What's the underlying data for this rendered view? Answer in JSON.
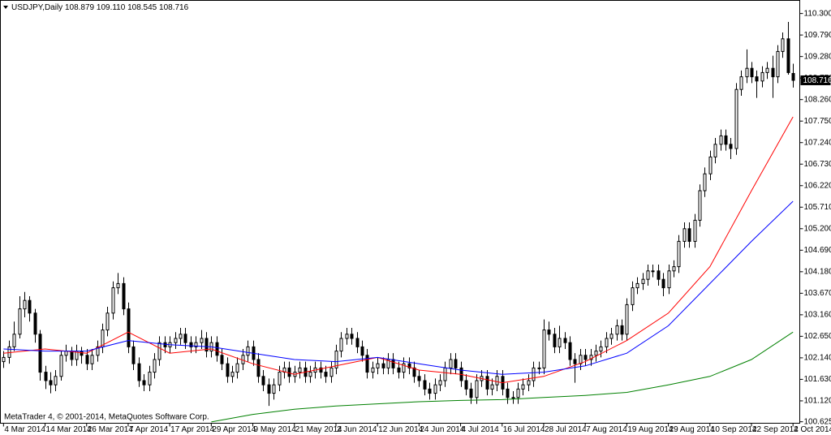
{
  "chart_data": {
    "type": "candlestick",
    "symbol": "USDJPY,Daily",
    "last_bar_labels": {
      "open": "108.879",
      "high": "109.110",
      "low": "108.545",
      "close": "108.716"
    },
    "footer": "MetaTrader 4, © 2001-2014, MetaQuotes Software Corp.",
    "up_color": "#ffffff",
    "down_color": "#000000",
    "xlim": [
      -0.6,
      153.3
    ],
    "xticks": [
      {
        "value": 0,
        "label": "4 Mar 2014"
      },
      {
        "value": 8,
        "label": "14 Mar 2014"
      },
      {
        "value": 16,
        "label": "26 Mar 2014"
      },
      {
        "value": 24,
        "label": "7 Apr 2014"
      },
      {
        "value": 32,
        "label": "17 Apr 2014"
      },
      {
        "value": 40,
        "label": "29 Apr 2014"
      },
      {
        "value": 48,
        "label": "9 May 2014"
      },
      {
        "value": 56,
        "label": "21 May 2014"
      },
      {
        "value": 64,
        "label": "2 Jun 2014"
      },
      {
        "value": 72,
        "label": "12 Jun 2014"
      },
      {
        "value": 80,
        "label": "24 Jun 2014"
      },
      {
        "value": 88,
        "label": "4 Jul 2014"
      },
      {
        "value": 96,
        "label": "16 Jul 2014"
      },
      {
        "value": 104,
        "label": "28 Jul 2014"
      },
      {
        "value": 112,
        "label": "7 Aug 2014"
      },
      {
        "value": 120,
        "label": "19 Aug 2014"
      },
      {
        "value": 128,
        "label": "29 Aug 2014"
      },
      {
        "value": 136,
        "label": "10 Sep 2014"
      },
      {
        "value": 144,
        "label": "22 Sep 2014"
      },
      {
        "value": 152,
        "label": "2 Oct 2014"
      }
    ],
    "ylim": [
      100.59,
      110.61
    ],
    "yticks": [
      {
        "value": 110.3,
        "label": "110.300"
      },
      {
        "value": 109.79,
        "label": "109.790"
      },
      {
        "value": 109.28,
        "label": "109.280"
      },
      {
        "value": 108.77,
        "label": "108.770"
      },
      {
        "value": 108.26,
        "label": "108.260"
      },
      {
        "value": 107.75,
        "label": "107.750"
      },
      {
        "value": 107.24,
        "label": "107.240"
      },
      {
        "value": 106.73,
        "label": "106.730"
      },
      {
        "value": 106.22,
        "label": "106.220"
      },
      {
        "value": 105.71,
        "label": "105.710"
      },
      {
        "value": 105.2,
        "label": "105.200"
      },
      {
        "value": 104.69,
        "label": "104.690"
      },
      {
        "value": 104.18,
        "label": "104.180"
      },
      {
        "value": 103.67,
        "label": "103.670"
      },
      {
        "value": 103.16,
        "label": "103.160"
      },
      {
        "value": 102.65,
        "label": "102.650"
      },
      {
        "value": 102.14,
        "label": "102.140"
      },
      {
        "value": 101.63,
        "label": "101.630"
      },
      {
        "value": 101.12,
        "label": "101.120"
      },
      {
        "value": 100.625,
        "label": "100.625"
      }
    ],
    "open": [
      102.05,
      102.15,
      102.4,
      102.7,
      103.3,
      103.5,
      103.2,
      102.7,
      101.8,
      101.6,
      101.5,
      101.7,
      102.2,
      102.3,
      102.1,
      102.3,
      102.2,
      102.0,
      102.2,
      102.4,
      102.8,
      103.2,
      103.8,
      103.9,
      103.3,
      102.4,
      102.0,
      101.6,
      101.5,
      101.8,
      102.1,
      102.5,
      102.4,
      102.5,
      102.6,
      102.7,
      102.5,
      102.4,
      102.5,
      102.6,
      102.3,
      102.5,
      102.2,
      102.0,
      101.7,
      101.8,
      102.0,
      102.2,
      102.4,
      102.1,
      101.7,
      101.5,
      101.3,
      101.5,
      101.8,
      101.9,
      101.7,
      101.8,
      101.9,
      101.7,
      101.8,
      101.9,
      101.8,
      101.7,
      101.9,
      102.3,
      102.6,
      102.7,
      102.6,
      102.4,
      102.2,
      101.8,
      101.9,
      102.0,
      101.9,
      102.1,
      101.9,
      101.8,
      102.0,
      101.9,
      101.7,
      101.6,
      101.4,
      101.3,
      101.5,
      101.6,
      101.9,
      102.1,
      101.9,
      101.6,
      101.4,
      101.2,
      101.6,
      101.7,
      101.4,
      101.5,
      101.7,
      101.4,
      101.2,
      101.2,
      101.4,
      101.5,
      101.6,
      101.9,
      101.9,
      102.8,
      102.7,
      102.4,
      102.6,
      102.5,
      102.1,
      102.0,
      102.2,
      102.1,
      102.2,
      102.3,
      102.4,
      102.6,
      102.7,
      102.9,
      102.7,
      103.4,
      103.8,
      103.9,
      104.0,
      104.2,
      104.2,
      104.0,
      103.8,
      104.2,
      104.3,
      104.9,
      105.2,
      104.9,
      105.4,
      106.1,
      106.5,
      106.9,
      107.2,
      107.4,
      107.2,
      107.1,
      108.5,
      108.8,
      109.0,
      108.8,
      108.7,
      108.9,
      109.0,
      108.8,
      109.4,
      109.7,
      108.879
    ],
    "high": [
      102.3,
      102.55,
      103.0,
      103.6,
      103.7,
      103.6,
      103.3,
      102.8,
      101.95,
      101.8,
      101.85,
      102.3,
      102.45,
      102.4,
      102.45,
      102.4,
      102.35,
      102.35,
      102.55,
      102.95,
      103.35,
      103.95,
      104.15,
      104.05,
      103.45,
      102.55,
      102.15,
      101.75,
      101.95,
      102.25,
      102.65,
      102.65,
      102.65,
      102.75,
      102.85,
      102.85,
      102.65,
      102.65,
      102.8,
      102.75,
      102.65,
      102.65,
      102.35,
      102.15,
      101.95,
      102.15,
      102.35,
      102.55,
      102.55,
      102.25,
      101.85,
      101.65,
      101.65,
      101.95,
      102.05,
      102.05,
      101.95,
      102.05,
      102.05,
      101.95,
      102.05,
      102.05,
      101.95,
      102.05,
      102.45,
      102.75,
      102.85,
      102.85,
      102.75,
      102.55,
      102.35,
      102.05,
      102.15,
      102.15,
      102.25,
      102.25,
      102.05,
      102.15,
      102.15,
      102.05,
      101.85,
      101.75,
      101.55,
      101.65,
      101.75,
      102.05,
      102.25,
      102.25,
      102.05,
      101.75,
      101.55,
      101.75,
      101.85,
      101.85,
      101.65,
      101.85,
      101.85,
      101.55,
      101.35,
      101.55,
      101.65,
      101.75,
      102.05,
      102.05,
      103.05,
      103.0,
      102.85,
      102.9,
      102.75,
      102.65,
      102.25,
      102.35,
      102.35,
      102.35,
      102.45,
      102.55,
      102.75,
      102.85,
      103.05,
      103.05,
      103.55,
      103.95,
      104.05,
      104.15,
      104.35,
      104.35,
      104.35,
      104.15,
      104.35,
      104.45,
      105.05,
      105.35,
      105.35,
      105.55,
      106.25,
      106.65,
      107.05,
      107.35,
      107.55,
      107.55,
      107.35,
      108.65,
      108.95,
      109.45,
      109.15,
      108.95,
      109.05,
      109.15,
      109.3,
      109.55,
      109.85,
      110.1,
      109.11
    ],
    "low": [
      101.9,
      102.0,
      102.3,
      102.6,
      103.1,
      103.0,
      102.5,
      101.6,
      101.4,
      101.3,
      101.35,
      101.6,
      102.05,
      101.95,
      101.95,
      102.0,
      101.85,
      101.85,
      102.05,
      102.25,
      102.65,
      103.05,
      103.65,
      103.15,
      102.25,
      101.85,
      101.45,
      101.35,
      101.35,
      101.65,
      101.95,
      102.25,
      102.25,
      102.35,
      102.45,
      102.35,
      102.25,
      102.25,
      102.35,
      102.15,
      102.15,
      102.05,
      101.85,
      101.55,
      101.55,
      101.65,
      101.85,
      102.05,
      101.95,
      101.55,
      101.35,
      101.0,
      101.15,
      101.35,
      101.65,
      101.55,
      101.55,
      101.65,
      101.55,
      101.55,
      101.65,
      101.65,
      101.55,
      101.55,
      101.75,
      102.15,
      102.45,
      102.45,
      102.25,
      102.05,
      101.65,
      101.65,
      101.75,
      101.75,
      101.75,
      101.75,
      101.65,
      101.65,
      101.75,
      101.55,
      101.45,
      101.25,
      101.15,
      101.15,
      101.35,
      101.45,
      101.75,
      101.75,
      101.45,
      101.25,
      101.05,
      101.05,
      101.45,
      101.25,
      101.25,
      101.35,
      101.25,
      101.05,
      101.05,
      101.05,
      101.25,
      101.35,
      101.45,
      101.75,
      101.75,
      102.55,
      102.25,
      102.25,
      102.35,
      101.95,
      101.55,
      101.85,
      101.95,
      101.95,
      102.05,
      102.15,
      102.25,
      102.45,
      102.55,
      102.55,
      102.55,
      103.25,
      103.65,
      103.75,
      103.85,
      104.05,
      103.85,
      103.6,
      103.65,
      104.05,
      104.15,
      104.75,
      104.75,
      104.75,
      105.25,
      105.95,
      106.35,
      106.75,
      107.05,
      107.05,
      106.85,
      106.95,
      108.35,
      108.65,
      108.65,
      108.3,
      108.55,
      108.75,
      108.3,
      108.65,
      109.25,
      108.85,
      108.545
    ],
    "close": [
      102.15,
      102.4,
      102.7,
      103.3,
      103.5,
      103.2,
      102.7,
      101.8,
      101.6,
      101.5,
      101.7,
      102.2,
      102.3,
      102.1,
      102.3,
      102.2,
      102.0,
      102.2,
      102.4,
      102.8,
      103.2,
      103.8,
      103.9,
      103.3,
      102.4,
      102.0,
      101.6,
      101.5,
      101.8,
      102.1,
      102.5,
      102.4,
      102.5,
      102.6,
      102.7,
      102.5,
      102.4,
      102.5,
      102.6,
      102.3,
      102.5,
      102.2,
      102.0,
      101.7,
      101.8,
      102.0,
      102.2,
      102.4,
      102.1,
      101.7,
      101.5,
      101.3,
      101.5,
      101.8,
      101.9,
      101.7,
      101.8,
      101.9,
      101.7,
      101.8,
      101.9,
      101.8,
      101.7,
      101.9,
      102.3,
      102.6,
      102.7,
      102.6,
      102.4,
      102.2,
      101.8,
      101.9,
      102.0,
      101.9,
      102.1,
      101.9,
      101.8,
      102.0,
      101.9,
      101.7,
      101.6,
      101.4,
      101.3,
      101.5,
      101.6,
      101.9,
      102.1,
      101.9,
      101.6,
      101.4,
      101.2,
      101.6,
      101.7,
      101.4,
      101.5,
      101.7,
      101.4,
      101.2,
      101.2,
      101.4,
      101.5,
      101.6,
      101.9,
      101.9,
      102.8,
      102.7,
      102.4,
      102.6,
      102.5,
      102.1,
      102.0,
      102.2,
      102.1,
      102.2,
      102.3,
      102.4,
      102.6,
      102.7,
      102.9,
      102.7,
      103.4,
      103.8,
      103.9,
      104.0,
      104.2,
      104.2,
      104.0,
      103.8,
      104.2,
      104.3,
      104.9,
      105.2,
      104.9,
      105.4,
      106.1,
      106.5,
      106.9,
      107.2,
      107.4,
      107.2,
      107.1,
      108.5,
      108.8,
      109.0,
      108.8,
      108.7,
      108.9,
      109.0,
      108.8,
      109.4,
      109.7,
      108.9,
      108.716
    ],
    "moving_averages": [
      {
        "color": "#ff0000",
        "x": [
          0,
          8,
          16,
          24,
          32,
          40,
          48,
          56,
          64,
          72,
          80,
          88,
          96,
          104,
          112,
          120,
          128,
          136,
          144,
          152
        ],
        "values": [
          102.25,
          102.35,
          102.25,
          102.75,
          102.25,
          102.35,
          102.0,
          101.75,
          101.95,
          102.15,
          101.85,
          101.75,
          101.55,
          101.7,
          102.05,
          102.55,
          103.2,
          104.3,
          106.1,
          107.85
        ]
      },
      {
        "color": "#0000ff",
        "x": [
          0,
          8,
          16,
          24,
          32,
          40,
          48,
          56,
          64,
          72,
          80,
          88,
          96,
          104,
          112,
          120,
          128,
          136,
          144,
          152
        ],
        "values": [
          102.35,
          102.3,
          102.3,
          102.55,
          102.45,
          102.4,
          102.25,
          102.1,
          102.05,
          102.15,
          102.0,
          101.85,
          101.75,
          101.8,
          101.95,
          102.25,
          102.9,
          103.9,
          104.9,
          105.85
        ]
      },
      {
        "color": "#008000",
        "x": [
          40,
          48,
          56,
          64,
          72,
          80,
          88,
          96,
          104,
          112,
          120,
          128,
          136,
          144,
          152
        ],
        "values": [
          100.62,
          100.8,
          100.92,
          101.0,
          101.05,
          101.1,
          101.13,
          101.15,
          101.2,
          101.25,
          101.32,
          101.5,
          101.7,
          102.1,
          102.75
        ]
      }
    ]
  }
}
